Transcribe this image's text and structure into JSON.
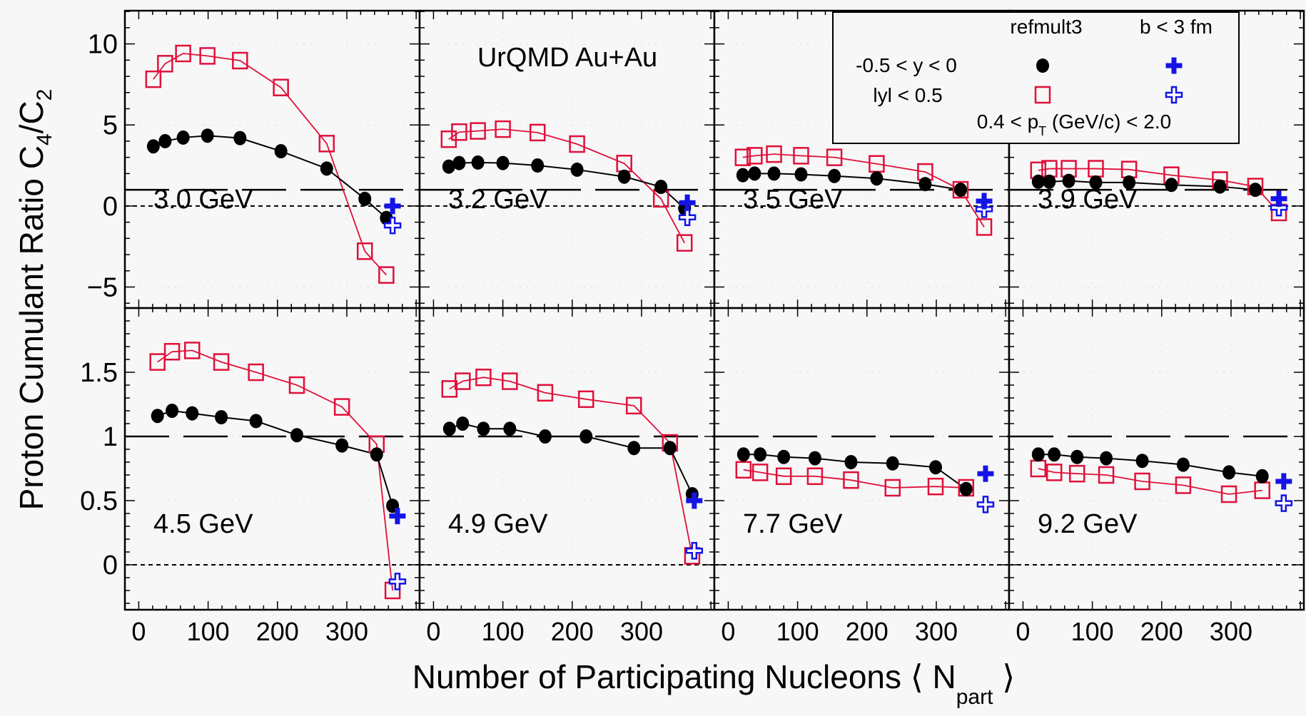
{
  "chart_data": {
    "type": "scatter",
    "ylabel": "Proton Cumulant Ratio C4/C2",
    "ylabel_parts": {
      "main": "Proton Cumulant Ratio C",
      "sub1": "4",
      "mid": "/C",
      "sub2": "2"
    },
    "xlabel_parts": {
      "main": "Number of Participating Nucleons ⟨ N",
      "sub": "part",
      "end": " ⟩"
    },
    "annotation": "UrQMD Au+Au",
    "xlim": [
      -20,
      405
    ],
    "xticks": [
      "0",
      "100",
      "200",
      "300"
    ],
    "rows": [
      {
        "ylim": [
          -6.3,
          12.05
        ],
        "yticks": [
          "10",
          "5",
          "0",
          "−5"
        ],
        "ytick_values": [
          10,
          5,
          0,
          -5
        ]
      },
      {
        "ylim": [
          -0.35,
          2.0
        ],
        "yticks": [
          "1.5",
          "1",
          "0.5",
          "0"
        ],
        "ytick_values": [
          1.5,
          1,
          0.5,
          0
        ]
      }
    ],
    "reference_lines": {
      "long_dash": 1,
      "short_dash": 0
    },
    "legend": {
      "col1": "refmult3",
      "col2": "b < 3 fm",
      "row1": "-0.5 < y < 0",
      "row2": "lyl < 0.5",
      "pt_main": "0.4 < p",
      "pt_sub": "T",
      "pt_end": " (GeV/c) < 2.0",
      "placement": "top-right"
    },
    "colors": {
      "refmult3_narrow": "#000000",
      "refmult3_wide": "#e0103a",
      "b3_filled": "#1414e6",
      "b3_open": "#1414e6"
    },
    "panels": [
      {
        "label": "3.0 GeV",
        "row": 0,
        "npart": [
          21,
          38,
          64,
          99,
          146,
          205,
          271,
          326,
          357
        ],
        "refmult3_y_neg05_0": [
          3.68,
          4.0,
          4.22,
          4.34,
          4.19,
          3.38,
          2.31,
          0.44,
          -0.74
        ],
        "refmult3_absy_05": [
          7.82,
          8.78,
          9.41,
          9.26,
          8.97,
          7.31,
          3.85,
          -2.79,
          -4.26
        ],
        "b3_npart": 366,
        "b3_y_neg05_0": 0.0,
        "b3_absy_05": -1.2
      },
      {
        "label": "3.2 GeV",
        "row": 0,
        "npart": [
          22,
          37,
          64,
          100,
          150,
          207,
          275,
          328,
          362
        ],
        "refmult3_y_neg05_0": [
          2.43,
          2.65,
          2.68,
          2.65,
          2.5,
          2.24,
          1.81,
          1.18,
          -0.15
        ],
        "refmult3_absy_05": [
          4.12,
          4.56,
          4.63,
          4.74,
          4.53,
          3.82,
          2.62,
          0.44,
          -2.28
        ],
        "b3_npart": 366,
        "b3_y_neg05_0": 0.2,
        "b3_absy_05": -0.7
      },
      {
        "label": "3.5 GeV",
        "row": 0,
        "npart": [
          21,
          38,
          66,
          105,
          153,
          214,
          284,
          335
        ],
        "refmult3_y_neg05_0": [
          1.9,
          2.0,
          2.0,
          1.95,
          1.85,
          1.7,
          1.35,
          1.0
        ],
        "refmult3_absy_05": [
          3.0,
          3.1,
          3.2,
          3.1,
          3.0,
          2.6,
          2.1,
          1.0
        ],
        "extra_npart": 369,
        "extra_absy_05": -1.3,
        "b3_npart": 369,
        "b3_y_neg05_0": 0.3,
        "b3_absy_05": -0.2
      },
      {
        "label": "3.9 GeV",
        "row": 0,
        "npart": [
          22,
          38,
          66,
          105,
          153,
          214,
          284,
          335
        ],
        "refmult3_y_neg05_0": [
          1.5,
          1.5,
          1.55,
          1.45,
          1.45,
          1.3,
          1.2,
          1.0
        ],
        "refmult3_absy_05": [
          2.2,
          2.3,
          2.3,
          2.3,
          2.25,
          1.9,
          1.6,
          1.2
        ],
        "extra_npart": 369,
        "extra_absy_05": -0.4,
        "b3_npart": 369,
        "b3_y_neg05_0": 0.45,
        "b3_absy_05": -0.1
      },
      {
        "label": "4.5 GeV",
        "row": 1,
        "npart": [
          27,
          48,
          77,
          119,
          169,
          228,
          293,
          343,
          366
        ],
        "refmult3_y_neg05_0": [
          1.16,
          1.2,
          1.18,
          1.15,
          1.12,
          1.01,
          0.93,
          0.86,
          0.46
        ],
        "refmult3_absy_05": [
          1.58,
          1.66,
          1.67,
          1.58,
          1.5,
          1.4,
          1.23,
          0.94,
          -0.2
        ],
        "b3_npart": 373,
        "b3_y_neg05_0": 0.38,
        "b3_absy_05": -0.13
      },
      {
        "label": "4.9 GeV",
        "row": 1,
        "npart": [
          23,
          42,
          72,
          110,
          161,
          220,
          289,
          341,
          373
        ],
        "refmult3_y_neg05_0": [
          1.06,
          1.1,
          1.06,
          1.06,
          1.0,
          1.0,
          0.91,
          0.91,
          0.55
        ],
        "refmult3_absy_05": [
          1.37,
          1.43,
          1.46,
          1.43,
          1.34,
          1.29,
          1.24,
          0.95,
          0.07
        ],
        "b3_npart": 376,
        "b3_y_neg05_0": 0.5,
        "b3_absy_05": 0.11
      },
      {
        "label": "7.7 GeV",
        "row": 1,
        "npart": [
          22,
          46,
          80,
          125,
          177,
          237,
          299,
          343
        ],
        "refmult3_y_neg05_0": [
          0.86,
          0.86,
          0.84,
          0.83,
          0.8,
          0.79,
          0.76,
          0.59
        ],
        "refmult3_absy_05": [
          0.74,
          0.72,
          0.69,
          0.69,
          0.66,
          0.6,
          0.61,
          0.6
        ],
        "b3_npart": 371,
        "b3_y_neg05_0": 0.71,
        "b3_absy_05": 0.47
      },
      {
        "label": "9.2 GeV",
        "row": 1,
        "npart": [
          22,
          45,
          78,
          120,
          172,
          231,
          297,
          345
        ],
        "refmult3_y_neg05_0": [
          0.86,
          0.86,
          0.84,
          0.83,
          0.81,
          0.78,
          0.72,
          0.69
        ],
        "refmult3_absy_05": [
          0.75,
          0.72,
          0.71,
          0.7,
          0.65,
          0.62,
          0.55,
          0.58
        ],
        "b3_npart": 376,
        "b3_y_neg05_0": 0.65,
        "b3_absy_05": 0.48
      }
    ]
  }
}
